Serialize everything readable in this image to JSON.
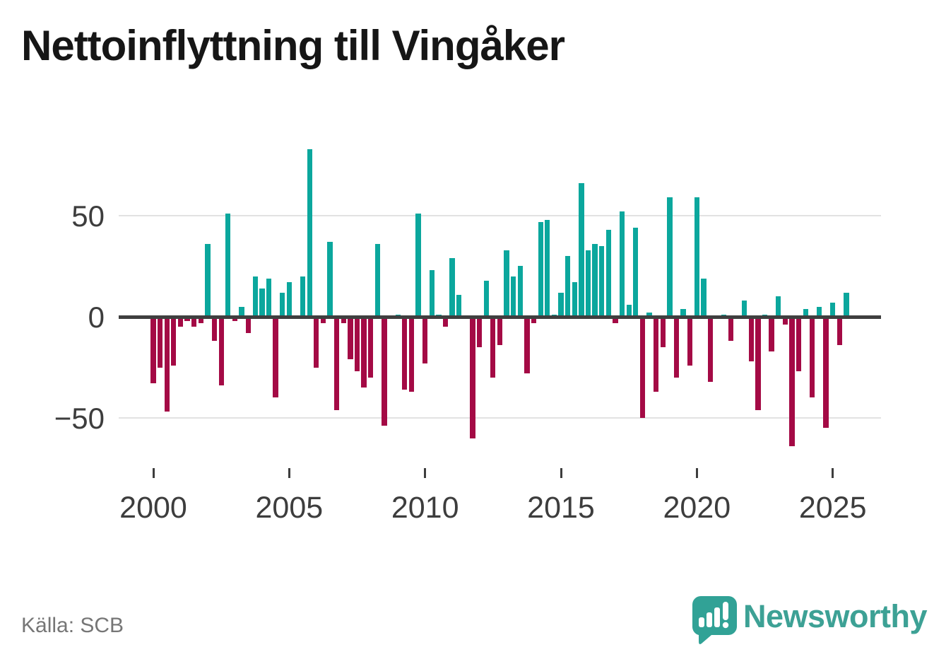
{
  "title": "Nettoinflyttning till Vingåker",
  "source": {
    "label": "Källa: SCB"
  },
  "branding": {
    "wordmark": "Newsworthy",
    "logo_icon": "speech-bubble-with-bar-chart-and-exclamation",
    "logo_color": "#31a296",
    "wordmark_color": "#3da195"
  },
  "chart_data": {
    "type": "bar",
    "title": "Nettoinflyttning till Vingåker",
    "x": [
      "2000 Q1",
      "2000 Q2",
      "2000 Q3",
      "2000 Q4",
      "2001 Q1",
      "2001 Q2",
      "2001 Q3",
      "2001 Q4",
      "2002 Q1",
      "2002 Q2",
      "2002 Q3",
      "2002 Q4",
      "2003 Q1",
      "2003 Q2",
      "2003 Q3",
      "2003 Q4",
      "2004 Q1",
      "2004 Q2",
      "2004 Q3",
      "2004 Q4",
      "2005 Q1",
      "2005 Q2",
      "2005 Q3",
      "2005 Q4",
      "2006 Q1",
      "2006 Q2",
      "2006 Q3",
      "2006 Q4",
      "2007 Q1",
      "2007 Q2",
      "2007 Q3",
      "2007 Q4",
      "2008 Q1",
      "2008 Q2",
      "2008 Q3",
      "2008 Q4",
      "2009 Q1",
      "2009 Q2",
      "2009 Q3",
      "2009 Q4",
      "2010 Q1",
      "2010 Q2",
      "2010 Q3",
      "2010 Q4",
      "2011 Q1",
      "2011 Q2",
      "2011 Q3",
      "2011 Q4",
      "2012 Q1",
      "2012 Q2",
      "2012 Q3",
      "2012 Q4",
      "2013 Q1",
      "2013 Q2",
      "2013 Q3",
      "2013 Q4",
      "2014 Q1",
      "2014 Q2",
      "2014 Q3",
      "2014 Q4",
      "2015 Q1",
      "2015 Q2",
      "2015 Q3",
      "2015 Q4",
      "2016 Q1",
      "2016 Q2",
      "2016 Q3",
      "2016 Q4",
      "2017 Q1",
      "2017 Q2",
      "2017 Q3",
      "2017 Q4",
      "2018 Q1",
      "2018 Q2",
      "2018 Q3",
      "2018 Q4",
      "2019 Q1",
      "2019 Q2",
      "2019 Q3",
      "2019 Q4",
      "2020 Q1",
      "2020 Q2",
      "2020 Q3",
      "2020 Q4",
      "2021 Q1",
      "2021 Q2",
      "2021 Q3",
      "2021 Q4",
      "2022 Q1",
      "2022 Q2",
      "2022 Q3",
      "2022 Q4",
      "2023 Q1",
      "2023 Q2",
      "2023 Q3",
      "2023 Q4",
      "2024 Q1",
      "2024 Q2",
      "2024 Q3",
      "2024 Q4",
      "2025 Q1",
      "2025 Q2",
      "2025 Q3"
    ],
    "values": [
      -33,
      -25,
      -47,
      -24,
      -5,
      -2,
      -5,
      -3,
      36,
      -12,
      -34,
      51,
      -2,
      5,
      -8,
      20,
      14,
      19,
      -40,
      12,
      17,
      -1,
      20,
      83,
      -25,
      -3,
      37,
      -46,
      -3,
      -21,
      -27,
      -35,
      -30,
      36,
      -54,
      -1,
      1,
      -36,
      -37,
      51,
      -23,
      23,
      1,
      -5,
      29,
      11,
      -1,
      -60,
      -15,
      18,
      -30,
      -14,
      33,
      20,
      25,
      -28,
      -3,
      47,
      48,
      1,
      12,
      30,
      17,
      66,
      33,
      36,
      35,
      43,
      -3,
      52,
      6,
      44,
      -50,
      2,
      -37,
      -15,
      59,
      -30,
      4,
      -24,
      59,
      19,
      -32,
      -1,
      1,
      -12,
      0,
      8,
      -22,
      -46,
      1,
      -17,
      10,
      -4,
      -64,
      -27,
      4,
      -40,
      5,
      -55,
      7,
      -14,
      12
    ],
    "x_tick_labels": [
      "2000",
      "2005",
      "2010",
      "2015",
      "2020",
      "2025"
    ],
    "y_tick_labels": [
      "50",
      "0",
      "−50"
    ],
    "y_ticks": [
      50,
      0,
      -50
    ],
    "ylim": [
      -70,
      95
    ],
    "grid": "horizontal",
    "legend": false,
    "colors": {
      "positive": "#0ba79d",
      "negative": "#a40a45",
      "axis": "#3f3f3f",
      "gridline": "#e2e2e2",
      "tick_text": "#3d3d3d"
    }
  }
}
